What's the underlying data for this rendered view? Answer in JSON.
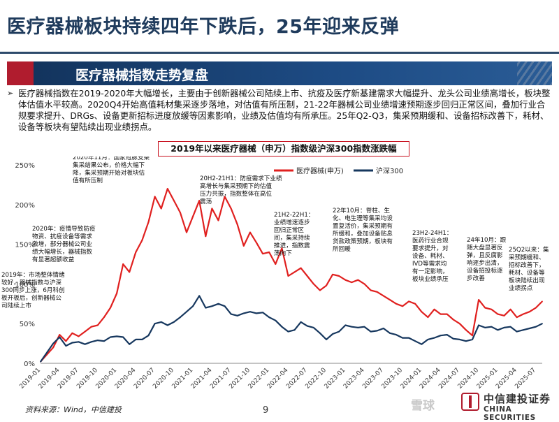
{
  "page": {
    "title": "医疗器械板块持续四年下跌后，25年迎来反弹",
    "section_title": "医疗器械指数走势复盘",
    "intro_bullet": "➢",
    "intro": "医疗器械指数在2019-2020年大幅增长，主要由于创新器械公司陆续上市、抗疫及医疗新基建需求大幅提升、龙头公司业绩高增长，板块整体估值水平较高。2020Q4开始高值耗材集采逐步落地，对估值有所压制，21-22年器械公司业绩增速预期逐步回归正常区间，叠加行业合规要求提升、DRGs、设备更新招标进度放缓等因素影响，业绩及估值均有所承压。25年Q2-Q3，集采预期缓和、设备招标改善下，耗材、设备等板块有望陆续出现业绩拐点。",
    "source": "资料来源：Wind，中信建投",
    "page_number": "9",
    "watermark": "雪球",
    "brand_cn": "中信建投证券",
    "brand_en": "CHINA SECURITIES"
  },
  "colors": {
    "title": "#1f3b5c",
    "section_bg": "#1d4b84",
    "accent_red": "#b01c2e",
    "series_medical": "#e0201f",
    "series_hs300": "#16375e"
  },
  "chart_data": {
    "type": "line",
    "title": "2019年以来医疗器械（申万）指数级沪深300指数涨跌幅",
    "xlabel": "",
    "ylabel": "",
    "ylim": [
      0,
      250
    ],
    "y_ticks": [
      "0%",
      "50%",
      "100%",
      "150%",
      "200%",
      "250%"
    ],
    "y_tick_values": [
      0,
      50,
      100,
      150,
      200,
      250
    ],
    "x_ticks": [
      "2019-01",
      "2019-04",
      "2019-07",
      "2019-10",
      "2020-01",
      "2020-04",
      "2020-07",
      "2020-10",
      "2021-01",
      "2021-04",
      "2021-07",
      "2021-10",
      "2022-01",
      "2022-04",
      "2022-07",
      "2022-10",
      "2023-01",
      "2023-04",
      "2023-07",
      "2023-10",
      "2024-01",
      "2024-04",
      "2024-07",
      "2024-10",
      "2025-01",
      "2025-04",
      "2025-07"
    ],
    "legend_position": "top-right",
    "grid": false,
    "series": [
      {
        "name": "医疗器械(申万)",
        "color": "#e0201f",
        "values": [
          {
            "x": "2019-01",
            "y": 2
          },
          {
            "x": "2019-03",
            "y": 20
          },
          {
            "x": "2019-04",
            "y": 36
          },
          {
            "x": "2019-05",
            "y": 28
          },
          {
            "x": "2019-06",
            "y": 38
          },
          {
            "x": "2019-07",
            "y": 34
          },
          {
            "x": "2019-08",
            "y": 40
          },
          {
            "x": "2019-09",
            "y": 46
          },
          {
            "x": "2019-10",
            "y": 48
          },
          {
            "x": "2019-11",
            "y": 58
          },
          {
            "x": "2019-12",
            "y": 70
          },
          {
            "x": "2020-01",
            "y": 88
          },
          {
            "x": "2020-02",
            "y": 125
          },
          {
            "x": "2020-03",
            "y": 115
          },
          {
            "x": "2020-04",
            "y": 140
          },
          {
            "x": "2020-05",
            "y": 155
          },
          {
            "x": "2020-06",
            "y": 178
          },
          {
            "x": "2020-07",
            "y": 210
          },
          {
            "x": "2020-08",
            "y": 195
          },
          {
            "x": "2020-09",
            "y": 220
          },
          {
            "x": "2020-10",
            "y": 205
          },
          {
            "x": "2020-11",
            "y": 190
          },
          {
            "x": "2020-12",
            "y": 165
          },
          {
            "x": "2021-01",
            "y": 185
          },
          {
            "x": "2021-02",
            "y": 205
          },
          {
            "x": "2021-03",
            "y": 160
          },
          {
            "x": "2021-04",
            "y": 195
          },
          {
            "x": "2021-05",
            "y": 180
          },
          {
            "x": "2021-06",
            "y": 210
          },
          {
            "x": "2021-07",
            "y": 195
          },
          {
            "x": "2021-08",
            "y": 175
          },
          {
            "x": "2021-09",
            "y": 148
          },
          {
            "x": "2021-10",
            "y": 165
          },
          {
            "x": "2021-11",
            "y": 152
          },
          {
            "x": "2021-12",
            "y": 138
          },
          {
            "x": "2022-01",
            "y": 140
          },
          {
            "x": "2022-02",
            "y": 125
          },
          {
            "x": "2022-03",
            "y": 145
          },
          {
            "x": "2022-04",
            "y": 110
          },
          {
            "x": "2022-05",
            "y": 115
          },
          {
            "x": "2022-06",
            "y": 120
          },
          {
            "x": "2022-07",
            "y": 110
          },
          {
            "x": "2022-08",
            "y": 100
          },
          {
            "x": "2022-09",
            "y": 92
          },
          {
            "x": "2022-10",
            "y": 98
          },
          {
            "x": "2022-11",
            "y": 112
          },
          {
            "x": "2022-12",
            "y": 110
          },
          {
            "x": "2023-01",
            "y": 105
          },
          {
            "x": "2023-02",
            "y": 102
          },
          {
            "x": "2023-03",
            "y": 105
          },
          {
            "x": "2023-04",
            "y": 100
          },
          {
            "x": "2023-05",
            "y": 92
          },
          {
            "x": "2023-06",
            "y": 90
          },
          {
            "x": "2023-07",
            "y": 85
          },
          {
            "x": "2023-08",
            "y": 80
          },
          {
            "x": "2023-09",
            "y": 75
          },
          {
            "x": "2023-10",
            "y": 72
          },
          {
            "x": "2023-11",
            "y": 78
          },
          {
            "x": "2023-12",
            "y": 75
          },
          {
            "x": "2024-01",
            "y": 65
          },
          {
            "x": "2024-02",
            "y": 58
          },
          {
            "x": "2024-03",
            "y": 68
          },
          {
            "x": "2024-04",
            "y": 62
          },
          {
            "x": "2024-05",
            "y": 62
          },
          {
            "x": "2024-06",
            "y": 55
          },
          {
            "x": "2024-07",
            "y": 50
          },
          {
            "x": "2024-08",
            "y": 42
          },
          {
            "x": "2024-09",
            "y": 35
          },
          {
            "x": "2024-10",
            "y": 80
          },
          {
            "x": "2024-11",
            "y": 70
          },
          {
            "x": "2024-12",
            "y": 68
          },
          {
            "x": "2025-01",
            "y": 62
          },
          {
            "x": "2025-02",
            "y": 60
          },
          {
            "x": "2025-03",
            "y": 68
          },
          {
            "x": "2025-04",
            "y": 58
          },
          {
            "x": "2025-05",
            "y": 62
          },
          {
            "x": "2025-06",
            "y": 65
          },
          {
            "x": "2025-07",
            "y": 70
          },
          {
            "x": "2025-08",
            "y": 78
          }
        ]
      },
      {
        "name": "沪深300",
        "color": "#16375e",
        "values": [
          {
            "x": "2019-01",
            "y": 2
          },
          {
            "x": "2019-03",
            "y": 25
          },
          {
            "x": "2019-04",
            "y": 33
          },
          {
            "x": "2019-05",
            "y": 22
          },
          {
            "x": "2019-06",
            "y": 26
          },
          {
            "x": "2019-07",
            "y": 27
          },
          {
            "x": "2019-08",
            "y": 24
          },
          {
            "x": "2019-09",
            "y": 27
          },
          {
            "x": "2019-10",
            "y": 29
          },
          {
            "x": "2019-11",
            "y": 28
          },
          {
            "x": "2019-12",
            "y": 33
          },
          {
            "x": "2020-01",
            "y": 34
          },
          {
            "x": "2020-02",
            "y": 33
          },
          {
            "x": "2020-03",
            "y": 24
          },
          {
            "x": "2020-04",
            "y": 30
          },
          {
            "x": "2020-05",
            "y": 30
          },
          {
            "x": "2020-06",
            "y": 35
          },
          {
            "x": "2020-07",
            "y": 50
          },
          {
            "x": "2020-08",
            "y": 52
          },
          {
            "x": "2020-09",
            "y": 48
          },
          {
            "x": "2020-10",
            "y": 52
          },
          {
            "x": "2020-11",
            "y": 58
          },
          {
            "x": "2020-12",
            "y": 65
          },
          {
            "x": "2021-01",
            "y": 72
          },
          {
            "x": "2021-02",
            "y": 85
          },
          {
            "x": "2021-03",
            "y": 70
          },
          {
            "x": "2021-04",
            "y": 72
          },
          {
            "x": "2021-05",
            "y": 75
          },
          {
            "x": "2021-06",
            "y": 72
          },
          {
            "x": "2021-07",
            "y": 62
          },
          {
            "x": "2021-08",
            "y": 60
          },
          {
            "x": "2021-09",
            "y": 63
          },
          {
            "x": "2021-10",
            "y": 65
          },
          {
            "x": "2021-11",
            "y": 63
          },
          {
            "x": "2021-12",
            "y": 64
          },
          {
            "x": "2022-01",
            "y": 58
          },
          {
            "x": "2022-02",
            "y": 54
          },
          {
            "x": "2022-03",
            "y": 46
          },
          {
            "x": "2022-04",
            "y": 40
          },
          {
            "x": "2022-05",
            "y": 42
          },
          {
            "x": "2022-06",
            "y": 52
          },
          {
            "x": "2022-07",
            "y": 47
          },
          {
            "x": "2022-08",
            "y": 45
          },
          {
            "x": "2022-09",
            "y": 38
          },
          {
            "x": "2022-10",
            "y": 30
          },
          {
            "x": "2022-11",
            "y": 37
          },
          {
            "x": "2022-12",
            "y": 40
          },
          {
            "x": "2023-01",
            "y": 48
          },
          {
            "x": "2023-02",
            "y": 46
          },
          {
            "x": "2023-03",
            "y": 45
          },
          {
            "x": "2023-04",
            "y": 46
          },
          {
            "x": "2023-05",
            "y": 40
          },
          {
            "x": "2023-06",
            "y": 41
          },
          {
            "x": "2023-07",
            "y": 44
          },
          {
            "x": "2023-08",
            "y": 38
          },
          {
            "x": "2023-09",
            "y": 36
          },
          {
            "x": "2023-10",
            "y": 32
          },
          {
            "x": "2023-11",
            "y": 32
          },
          {
            "x": "2023-12",
            "y": 28
          },
          {
            "x": "2024-01",
            "y": 24
          },
          {
            "x": "2024-02",
            "y": 30
          },
          {
            "x": "2024-03",
            "y": 32
          },
          {
            "x": "2024-04",
            "y": 35
          },
          {
            "x": "2024-05",
            "y": 36
          },
          {
            "x": "2024-06",
            "y": 31
          },
          {
            "x": "2024-07",
            "y": 30
          },
          {
            "x": "2024-08",
            "y": 28
          },
          {
            "x": "2024-09",
            "y": 30
          },
          {
            "x": "2024-10",
            "y": 48
          },
          {
            "x": "2024-11",
            "y": 45
          },
          {
            "x": "2024-12",
            "y": 46
          },
          {
            "x": "2025-01",
            "y": 42
          },
          {
            "x": "2025-02",
            "y": 45
          },
          {
            "x": "2025-03",
            "y": 46
          },
          {
            "x": "2025-04",
            "y": 40
          },
          {
            "x": "2025-05",
            "y": 42
          },
          {
            "x": "2025-06",
            "y": 44
          },
          {
            "x": "2025-07",
            "y": 46
          },
          {
            "x": "2025-08",
            "y": 50
          }
        ]
      }
    ],
    "annotations": [
      {
        "at": "2019-05",
        "lines": [
          "2019年：市场整体情绪",
          "较好，器械指数与沪深",
          "300同步上涨，6月科创",
          "板开板后，创新器械公",
          "司陆续上市"
        ]
      },
      {
        "at": "2019-11",
        "lines": [
          "2020年：疫情导致防疫",
          "物资、抗疫设备等需求",
          "激增，部分器械公司业",
          "绩大幅增长，器械指数",
          "有显著超额收益"
        ]
      },
      {
        "at": "2020-11",
        "lines": [
          "2020年11月：国家冠脉支架",
          "集采结果公布，价格大幅下",
          "降，集采预期开始对板块估",
          "值有所压制"
        ]
      },
      {
        "at": "2021-05",
        "lines": [
          "20H2-21H1：防疫需求下业绩",
          "高增长与集采预期下的估值",
          "压力共振，指数整体在高位",
          "震荡"
        ]
      },
      {
        "at": "2022-03",
        "lines": [
          "21H2-22H1：",
          "业绩增速逐步",
          "回归正常区",
          "间，集采持续",
          "推进，指数震",
          "荡向下"
        ]
      },
      {
        "at": "2022-10",
        "lines": [
          "22年10月：脊柱、生",
          "化、电生理等集采均设",
          "置复活价，集采预期有",
          "所缓和，叠加设备贴息",
          "贷款政策预期，板块有",
          "所回暖"
        ]
      },
      {
        "at": "2023-12",
        "lines": [
          "23H2-24H1：",
          "医药行业合规",
          "要求提升，对",
          "设备、耗材、",
          "IVD等需求均",
          "有一定影响，",
          "板块业绩承压"
        ]
      },
      {
        "at": "2024-08",
        "lines": [
          "24年10月：跟",
          "随大盘显著反",
          "弹，且反腐影",
          "响逐步出清，",
          "设备招投标逐",
          "步改善"
        ]
      },
      {
        "at": "2025-05",
        "lines": [
          "25Q2以来：集",
          "采预期缓和、",
          "招标改善下，",
          "耗材、设备等",
          "板块陆续出现",
          "业绩拐点"
        ]
      }
    ]
  }
}
